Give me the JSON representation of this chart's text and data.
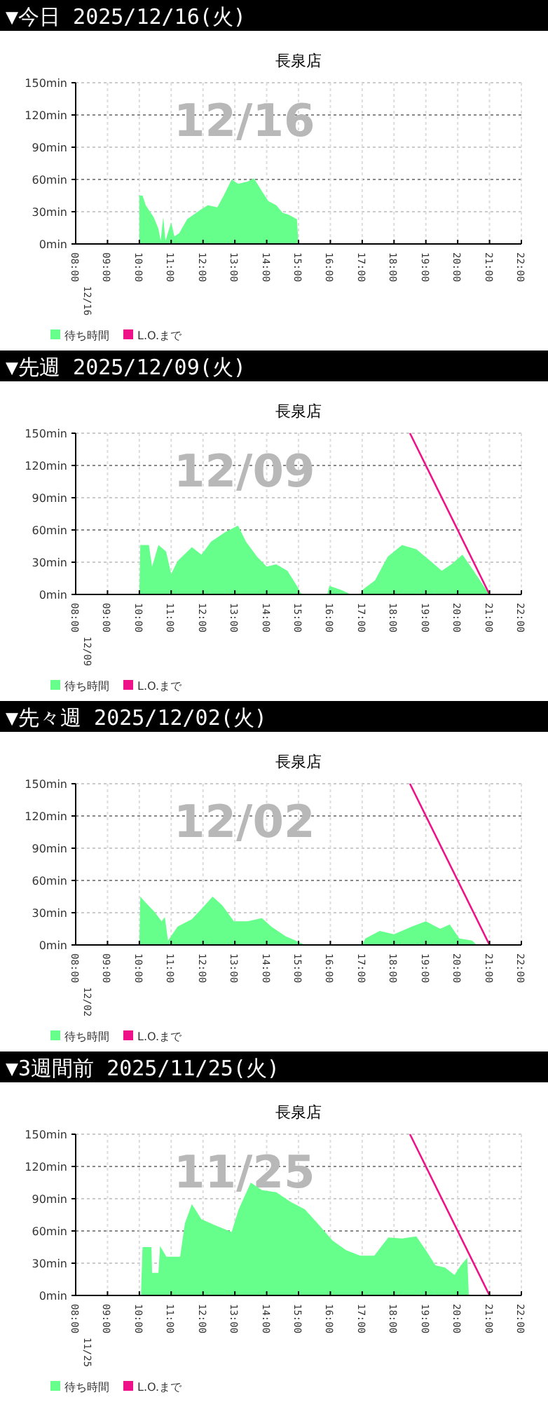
{
  "chart_data": [
    {
      "type": "area",
      "title": "長泉店",
      "annotations": [
        "▼今日 2025/12/16(火)",
        "12/16"
      ],
      "xlim": [
        8,
        22
      ],
      "ylim": [
        0,
        150
      ],
      "xticks": [
        {
          "value": 8,
          "label": "12/16 08:00"
        },
        {
          "value": 9,
          "label": "09:00"
        },
        {
          "value": 10,
          "label": "10:00"
        },
        {
          "value": 11,
          "label": "11:00"
        },
        {
          "value": 12,
          "label": "12:00"
        },
        {
          "value": 13,
          "label": "13:00"
        },
        {
          "value": 14,
          "label": "14:00"
        },
        {
          "value": 15,
          "label": "15:00"
        },
        {
          "value": 16,
          "label": "16:00"
        },
        {
          "value": 17,
          "label": "17:00"
        },
        {
          "value": 18,
          "label": "18:00"
        },
        {
          "value": 19,
          "label": "19:00"
        },
        {
          "value": 20,
          "label": "20:00"
        },
        {
          "value": 21,
          "label": "21:00"
        },
        {
          "value": 22,
          "label": "22:00"
        }
      ],
      "yticks": [
        {
          "value": 0,
          "label": "0min"
        },
        {
          "value": 30,
          "label": "30min"
        },
        {
          "value": 60,
          "label": "60min"
        },
        {
          "value": 90,
          "label": "90min"
        },
        {
          "value": 120,
          "label": "120min"
        },
        {
          "value": 150,
          "label": "150min"
        }
      ],
      "grid": true,
      "legend": "bottom",
      "series": [
        {
          "name": "待ち時間",
          "color": "#66ff8c",
          "x": [
            10,
            10.1,
            10.2,
            10.45,
            10.6,
            10.67,
            10.75,
            10.82,
            11,
            11.1,
            11.25,
            11.5,
            11.93,
            12.15,
            12.45,
            12.65,
            12.9,
            13.1,
            13.4,
            13.6,
            13.85,
            14.05,
            14.3,
            14.5,
            14.7,
            14.95,
            15
          ],
          "values": [
            45,
            45,
            36,
            25,
            14,
            3,
            25,
            3,
            20,
            7,
            10,
            23,
            32,
            36,
            34,
            45,
            60,
            56,
            58,
            61,
            49,
            40,
            36,
            29,
            27,
            23,
            0
          ]
        },
        {
          "name": "L.O.まで",
          "color": "#ee1188",
          "type": "line"
        }
      ]
    },
    {
      "type": "area",
      "title": "長泉店",
      "annotations": [
        "▼先週 2025/12/09(火)",
        "12/09"
      ],
      "xlim": [
        8,
        22
      ],
      "ylim": [
        0,
        150
      ],
      "xticks": [
        {
          "value": 8,
          "label": "12/09 08:00"
        },
        {
          "value": 9,
          "label": "09:00"
        },
        {
          "value": 10,
          "label": "10:00"
        },
        {
          "value": 11,
          "label": "11:00"
        },
        {
          "value": 12,
          "label": "12:00"
        },
        {
          "value": 13,
          "label": "13:00"
        },
        {
          "value": 14,
          "label": "14:00"
        },
        {
          "value": 15,
          "label": "15:00"
        },
        {
          "value": 16,
          "label": "16:00"
        },
        {
          "value": 17,
          "label": "17:00"
        },
        {
          "value": 18,
          "label": "18:00"
        },
        {
          "value": 19,
          "label": "19:00"
        },
        {
          "value": 20,
          "label": "20:00"
        },
        {
          "value": 21,
          "label": "21:00"
        },
        {
          "value": 22,
          "label": "22:00"
        }
      ],
      "yticks": [
        {
          "value": 0,
          "label": "0min"
        },
        {
          "value": 30,
          "label": "30min"
        },
        {
          "value": 60,
          "label": "60min"
        },
        {
          "value": 90,
          "label": "90min"
        },
        {
          "value": 120,
          "label": "120min"
        },
        {
          "value": 150,
          "label": "150min"
        }
      ],
      "grid": true,
      "legend": "bottom",
      "series": [
        {
          "name": "待ち時間",
          "color": "#66ff8c",
          "x": [
            10,
            10.03,
            10.3,
            10.4,
            10.6,
            10.84,
            11,
            11.2,
            11.65,
            11.95,
            12.25,
            12.7,
            13.1,
            13.35,
            13.7,
            14,
            14.3,
            14.65,
            14.95,
            15.1,
            15.9,
            15.97,
            16.35,
            16.65,
            16.95,
            17,
            17.4,
            17.8,
            18.25,
            18.7,
            19.15,
            19.5,
            19.8,
            20.15,
            20.5,
            20.9,
            20.98
          ],
          "values": [
            0,
            46,
            46,
            26,
            46,
            40,
            19,
            31,
            44,
            37,
            49,
            58,
            64,
            49,
            35,
            26,
            28,
            22,
            8,
            0,
            0,
            8,
            4,
            0,
            0,
            4,
            13,
            35,
            46,
            42,
            31,
            22,
            28,
            37,
            22,
            4,
            0
          ]
        },
        {
          "name": "L.O.まで",
          "color": "#ee1188",
          "type": "line",
          "x": [
            18.5,
            21
          ],
          "values": [
            150,
            0
          ]
        }
      ]
    },
    {
      "type": "area",
      "title": "長泉店",
      "annotations": [
        "▼先々週 2025/12/02(火)",
        "12/02"
      ],
      "xlim": [
        8,
        22
      ],
      "ylim": [
        0,
        150
      ],
      "xticks": [
        {
          "value": 8,
          "label": "12/02 08:00"
        },
        {
          "value": 9,
          "label": "09:00"
        },
        {
          "value": 10,
          "label": "10:00"
        },
        {
          "value": 11,
          "label": "11:00"
        },
        {
          "value": 12,
          "label": "12:00"
        },
        {
          "value": 13,
          "label": "13:00"
        },
        {
          "value": 14,
          "label": "14:00"
        },
        {
          "value": 15,
          "label": "15:00"
        },
        {
          "value": 16,
          "label": "16:00"
        },
        {
          "value": 17,
          "label": "17:00"
        },
        {
          "value": 18,
          "label": "18:00"
        },
        {
          "value": 19,
          "label": "19:00"
        },
        {
          "value": 20,
          "label": "20:00"
        },
        {
          "value": 21,
          "label": "21:00"
        },
        {
          "value": 22,
          "label": "22:00"
        }
      ],
      "yticks": [
        {
          "value": 0,
          "label": "0min"
        },
        {
          "value": 30,
          "label": "30min"
        },
        {
          "value": 60,
          "label": "60min"
        },
        {
          "value": 90,
          "label": "90min"
        },
        {
          "value": 120,
          "label": "120min"
        },
        {
          "value": 150,
          "label": "150min"
        }
      ],
      "grid": true,
      "legend": "bottom",
      "series": [
        {
          "name": "待ち時間",
          "color": "#66ff8c",
          "x": [
            10,
            10.03,
            10.18,
            10.47,
            10.7,
            10.8,
            10.9,
            11.2,
            11.65,
            12,
            12.3,
            12.6,
            12.97,
            13.4,
            13.85,
            14.15,
            14.6,
            15,
            15.2,
            17,
            17.1,
            17.55,
            18,
            18.55,
            19,
            19.45,
            19.75,
            20.05,
            20.45,
            20.6
          ],
          "values": [
            0,
            45,
            40,
            31,
            22,
            26,
            4,
            17,
            24,
            35,
            45,
            37,
            22,
            22,
            25,
            17,
            8,
            3,
            0,
            0,
            6,
            13,
            10,
            17,
            22,
            15,
            19,
            6,
            4,
            0
          ]
        },
        {
          "name": "L.O.まで",
          "color": "#ee1188",
          "type": "line",
          "x": [
            18.5,
            21
          ],
          "values": [
            150,
            0
          ]
        }
      ]
    },
    {
      "type": "area",
      "title": "長泉店",
      "annotations": [
        "▼3週間前 2025/11/25(火)",
        "11/25"
      ],
      "xlim": [
        8,
        22
      ],
      "ylim": [
        0,
        150
      ],
      "xticks": [
        {
          "value": 8,
          "label": "11/25 08:00"
        },
        {
          "value": 9,
          "label": "09:00"
        },
        {
          "value": 10,
          "label": "10:00"
        },
        {
          "value": 11,
          "label": "11:00"
        },
        {
          "value": 12,
          "label": "12:00"
        },
        {
          "value": 13,
          "label": "13:00"
        },
        {
          "value": 14,
          "label": "14:00"
        },
        {
          "value": 15,
          "label": "15:00"
        },
        {
          "value": 16,
          "label": "16:00"
        },
        {
          "value": 17,
          "label": "17:00"
        },
        {
          "value": 18,
          "label": "18:00"
        },
        {
          "value": 19,
          "label": "19:00"
        },
        {
          "value": 20,
          "label": "20:00"
        },
        {
          "value": 21,
          "label": "21:00"
        },
        {
          "value": 22,
          "label": "22:00"
        }
      ],
      "yticks": [
        {
          "value": 0,
          "label": "0min"
        },
        {
          "value": 30,
          "label": "30min"
        },
        {
          "value": 60,
          "label": "60min"
        },
        {
          "value": 90,
          "label": "90min"
        },
        {
          "value": 120,
          "label": "120min"
        },
        {
          "value": 150,
          "label": "150min"
        }
      ],
      "grid": true,
      "legend": "bottom",
      "series": [
        {
          "name": "待ち時間",
          "color": "#66ff8c",
          "x": [
            10.05,
            10.1,
            10.38,
            10.4,
            10.6,
            10.65,
            10.85,
            11.28,
            11.43,
            11.65,
            11.95,
            12.4,
            12.9,
            13.12,
            13.5,
            13.85,
            14.3,
            14.75,
            15.2,
            15.6,
            16.07,
            16.5,
            16.94,
            17.38,
            17.82,
            18.25,
            18.7,
            19,
            19.3,
            19.6,
            19.9,
            20.1,
            20.3,
            20.35
          ],
          "values": [
            0,
            45,
            45,
            21,
            21,
            46,
            36,
            36,
            67,
            85,
            71,
            65,
            59,
            80,
            105,
            98,
            96,
            87,
            80,
            67,
            51,
            42,
            37,
            37,
            54,
            53,
            55,
            42,
            28,
            26,
            19,
            28,
            35,
            0
          ]
        },
        {
          "name": "L.O.まで",
          "color": "#ee1188",
          "type": "line",
          "x": [
            18.5,
            21
          ],
          "values": [
            150,
            0
          ]
        }
      ]
    }
  ]
}
